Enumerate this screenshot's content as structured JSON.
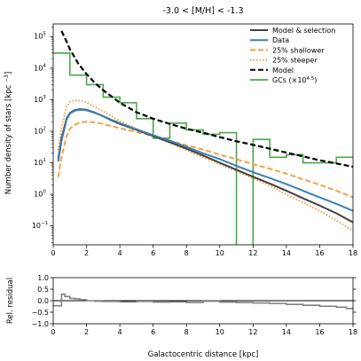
{
  "chart_data": [
    {
      "type": "line",
      "title": "-3.0 < [M/H] < -1.3",
      "xlabel": "",
      "ylabel": "Number density of stars [kpc^-3]",
      "ylabel_unit_sup": "−3",
      "xlim": [
        0,
        18
      ],
      "ylim_log10": [
        -1.6,
        5.4
      ],
      "yscale": "log",
      "x_ticks": [
        0,
        2,
        4,
        6,
        8,
        10,
        12,
        14,
        16,
        18
      ],
      "y_ticks_log10": [
        -1,
        0,
        1,
        2,
        3,
        4,
        5
      ],
      "legend_position": "top-right",
      "series": [
        {
          "name": "Model & selection",
          "color": "#404040",
          "style": "solid",
          "x": [
            0.3,
            0.5,
            0.8,
            1.0,
            1.3,
            1.6,
            2.0,
            2.5,
            3,
            3.5,
            4,
            5,
            6,
            7,
            8,
            9,
            10,
            11,
            12,
            13,
            14,
            15,
            16,
            17,
            18
          ],
          "y": [
            13,
            60,
            250,
            380,
            470,
            500,
            480,
            390,
            300,
            220,
            170,
            110,
            70,
            45,
            28,
            17,
            10,
            6,
            3.6,
            2.2,
            1.3,
            0.75,
            0.44,
            0.25,
            0.13
          ]
        },
        {
          "name": "Data",
          "color": "#3c7fb6",
          "style": "solid",
          "x": [
            0.3,
            0.5,
            0.8,
            1.0,
            1.3,
            1.6,
            2.0,
            2.5,
            3,
            3.5,
            4,
            5,
            6,
            7,
            8,
            9,
            10,
            11,
            12,
            13,
            14,
            15,
            16,
            17,
            18
          ],
          "y": [
            11,
            50,
            230,
            360,
            450,
            480,
            460,
            380,
            300,
            230,
            180,
            115,
            75,
            50,
            32,
            20,
            13,
            8,
            5,
            3.3,
            2.1,
            1.3,
            0.8,
            0.5,
            0.3
          ]
        },
        {
          "name": "25% shallower",
          "color": "#f5a043",
          "style": "dashed",
          "x": [
            0.3,
            0.5,
            0.8,
            1.0,
            1.3,
            1.6,
            2.0,
            2.5,
            3,
            3.5,
            4,
            5,
            6,
            7,
            8,
            9,
            10,
            11,
            12,
            13,
            14,
            15,
            16,
            17,
            18
          ],
          "y": [
            3.5,
            15,
            70,
            120,
            160,
            190,
            200,
            190,
            170,
            145,
            125,
            95,
            70,
            50,
            36,
            26,
            18,
            13,
            9,
            6.5,
            4.5,
            3.0,
            2.0,
            1.3,
            0.8
          ]
        },
        {
          "name": "25% steeper",
          "color": "#f5a043",
          "style": "dotted",
          "x": [
            0.3,
            0.5,
            0.8,
            1.0,
            1.3,
            1.6,
            2.0,
            2.5,
            3,
            3.5,
            4,
            5,
            6,
            7,
            8,
            9,
            10,
            11,
            12,
            13,
            14,
            15,
            16,
            17,
            18
          ],
          "y": [
            25,
            130,
            600,
            850,
            950,
            930,
            820,
            600,
            430,
            300,
            210,
            120,
            70,
            42,
            25,
            15,
            9,
            5.5,
            3.2,
            1.9,
            1.0,
            0.55,
            0.3,
            0.15,
            0.07
          ]
        },
        {
          "name": "Model",
          "color": "#000000",
          "style": "dashed",
          "x": [
            0.5,
            0.8,
            1.0,
            1.5,
            2.0,
            2.5,
            3,
            4,
            5,
            6,
            7,
            8,
            9,
            10,
            11,
            12,
            13,
            14,
            15,
            16,
            17,
            18
          ],
          "y": [
            150000,
            70000,
            40000,
            14000,
            6500,
            3400,
            2000,
            800,
            400,
            250,
            170,
            120,
            90,
            65,
            48,
            37,
            28,
            21,
            16,
            12,
            9.5,
            7.5
          ]
        }
      ],
      "gc_histogram": {
        "name": "GCs (×10^4.5)",
        "name_base": "GCs (×10",
        "name_sup": "4.5",
        "name_tail": ")",
        "color": "#4aa84a",
        "bin_edges": [
          0,
          1,
          2,
          3,
          4,
          5,
          6,
          7,
          8,
          9,
          10,
          11,
          12,
          13,
          14,
          15,
          16,
          17,
          18
        ],
        "values": [
          30000,
          6000,
          3000,
          1200,
          800,
          250,
          60,
          180,
          110,
          80,
          90,
          0,
          55,
          15,
          18,
          10,
          10,
          15
        ]
      }
    },
    {
      "type": "line",
      "title": "",
      "xlabel": "Galactocentric distance [kpc]",
      "ylabel": "Rel. residual",
      "xlim": [
        0,
        18
      ],
      "ylim": [
        -1.0,
        1.0
      ],
      "x_ticks": [
        0,
        2,
        4,
        6,
        8,
        10,
        12,
        14,
        16,
        18
      ],
      "y_ticks": [
        -1.0,
        -0.5,
        0.0,
        0.5,
        1.0
      ],
      "y_tick_labels": [
        "−1.0",
        "−0.5",
        "0.0",
        "0.5",
        "1.0"
      ],
      "reference_line": 0.0,
      "series": [
        {
          "name": "",
          "color": "#808080",
          "style": "step",
          "x": [
            0.0,
            0.5,
            0.7,
            1.0,
            1.3,
            1.6,
            2.0,
            2.5,
            3,
            4,
            5,
            6,
            7,
            8,
            9,
            10,
            11,
            12,
            13,
            14,
            15,
            16,
            17,
            17.6,
            18
          ],
          "y": [
            -0.22,
            0.28,
            0.18,
            0.1,
            0.08,
            0.04,
            0.0,
            -0.02,
            -0.03,
            -0.05,
            -0.03,
            -0.06,
            -0.05,
            -0.08,
            -0.02,
            -0.06,
            -0.08,
            -0.1,
            -0.12,
            -0.16,
            -0.2,
            -0.24,
            -0.28,
            -0.34,
            -0.36
          ]
        }
      ]
    }
  ]
}
